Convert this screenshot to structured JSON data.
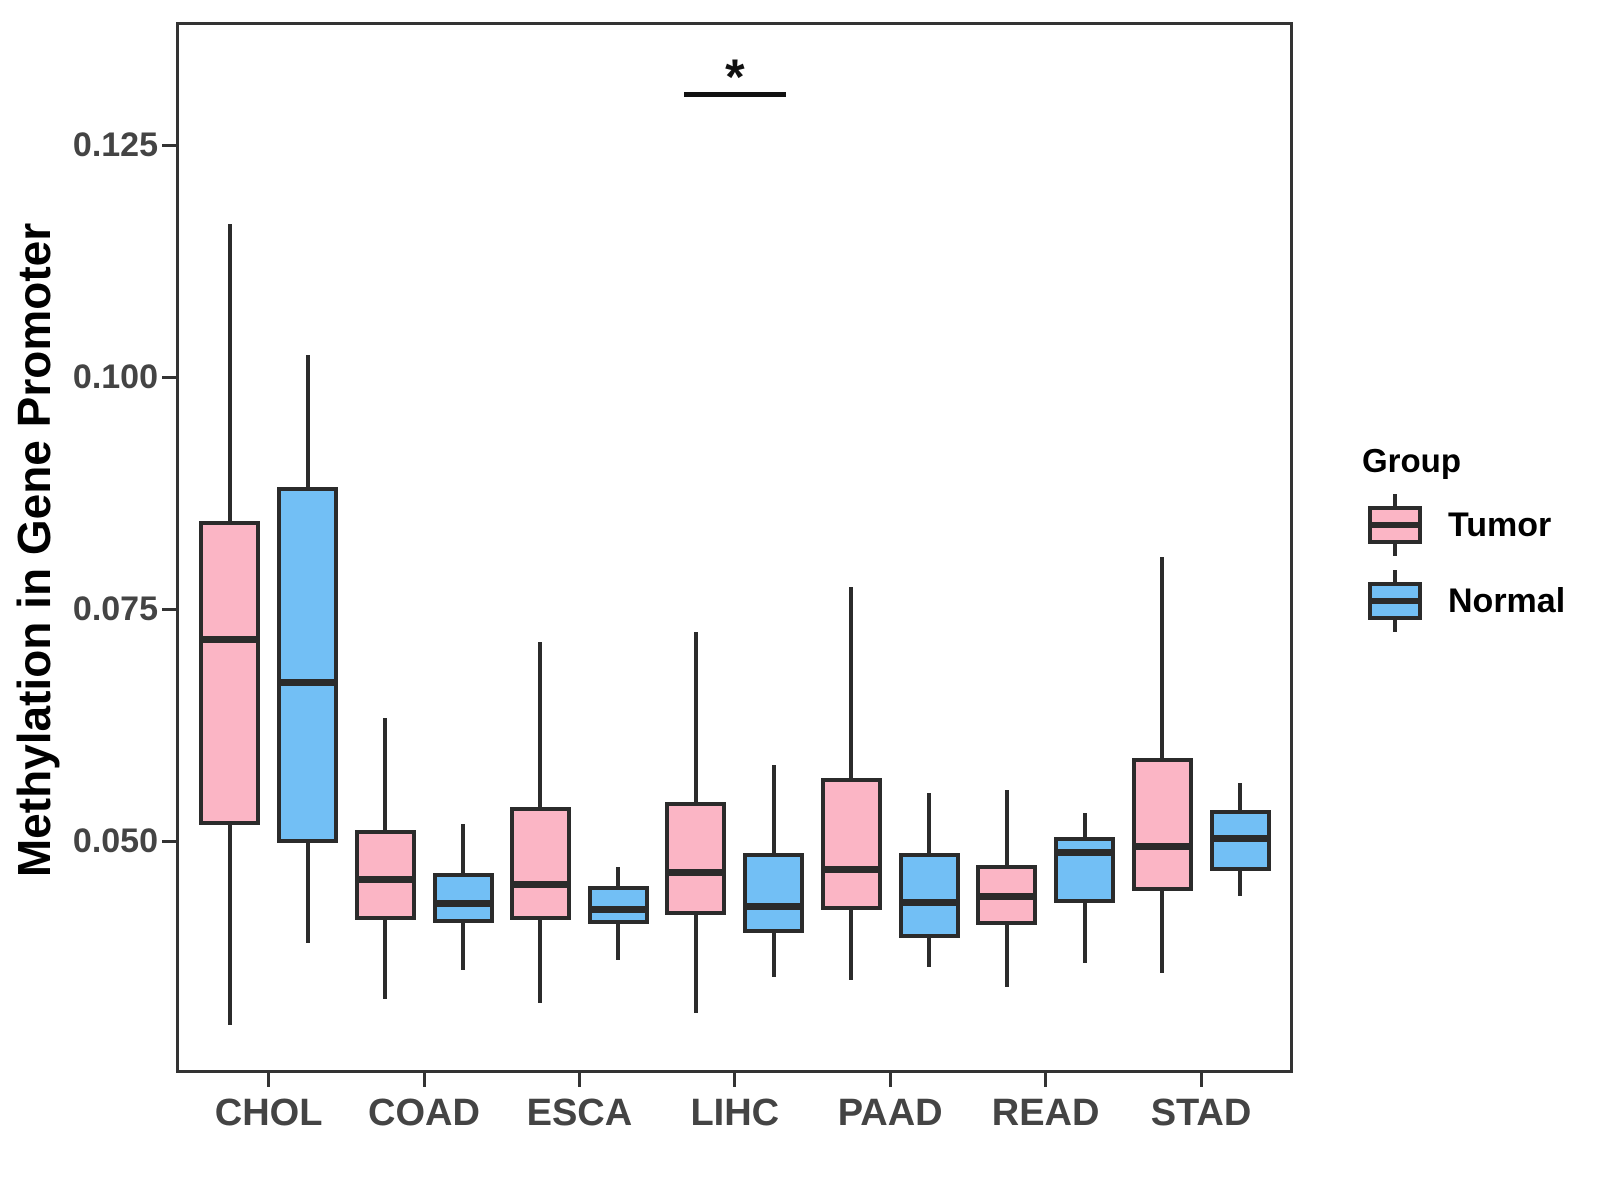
{
  "figure": {
    "y_axis_title": "Methylation in Gene Promoter"
  },
  "legend": {
    "title": "Group",
    "items": [
      {
        "label": "Tumor",
        "color": "#FBB5C5"
      },
      {
        "label": "Normal",
        "color": "#72BFF5"
      }
    ]
  },
  "chart_data": {
    "type": "boxplot",
    "title": "",
    "xlabel": "",
    "ylabel": "Methylation in Gene Promoter",
    "categories": [
      "CHOL",
      "COAD",
      "ESCA",
      "LIHC",
      "PAAD",
      "READ",
      "STAD"
    ],
    "groups": [
      "Tumor",
      "Normal"
    ],
    "y_ticks": [
      0.05,
      0.075,
      0.1,
      0.125
    ],
    "y_tick_labels": [
      "0.050",
      "0.075",
      "0.100",
      "0.125"
    ],
    "ylim": [
      0.025,
      0.138
    ],
    "grid": false,
    "legend_position": "right",
    "stroke_color": "#2B2B2B",
    "series": [
      {
        "name": "Tumor",
        "fill": "#FBB5C5",
        "boxes": [
          {
            "category": "CHOL",
            "whisker_low": 0.0302,
            "q1": 0.0517,
            "median": 0.0717,
            "q3": 0.0845,
            "whisker_high": 0.1165
          },
          {
            "category": "COAD",
            "whisker_low": 0.033,
            "q1": 0.0415,
            "median": 0.0458,
            "q3": 0.0512,
            "whisker_high": 0.0633
          },
          {
            "category": "ESCA",
            "whisker_low": 0.0325,
            "q1": 0.0415,
            "median": 0.0453,
            "q3": 0.0537,
            "whisker_high": 0.0714
          },
          {
            "category": "LIHC",
            "whisker_low": 0.0315,
            "q1": 0.042,
            "median": 0.0466,
            "q3": 0.0542,
            "whisker_high": 0.0725
          },
          {
            "category": "PAAD",
            "whisker_low": 0.035,
            "q1": 0.0426,
            "median": 0.0469,
            "q3": 0.0568,
            "whisker_high": 0.0774
          },
          {
            "category": "READ",
            "whisker_low": 0.0343,
            "q1": 0.041,
            "median": 0.044,
            "q3": 0.0474,
            "whisker_high": 0.0555
          },
          {
            "category": "STAD",
            "whisker_low": 0.0358,
            "q1": 0.0446,
            "median": 0.0494,
            "q3": 0.0589,
            "whisker_high": 0.0806
          }
        ]
      },
      {
        "name": "Normal",
        "fill": "#72BFF5",
        "boxes": [
          {
            "category": "CHOL",
            "whisker_low": 0.039,
            "q1": 0.0498,
            "median": 0.0671,
            "q3": 0.0881,
            "whisker_high": 0.1024
          },
          {
            "category": "COAD",
            "whisker_low": 0.0361,
            "q1": 0.0412,
            "median": 0.0433,
            "q3": 0.0466,
            "whisker_high": 0.0518
          },
          {
            "category": "ESCA",
            "whisker_low": 0.0372,
            "q1": 0.0411,
            "median": 0.0426,
            "q3": 0.0451,
            "whisker_high": 0.0472
          },
          {
            "category": "LIHC",
            "whisker_low": 0.0353,
            "q1": 0.0401,
            "median": 0.0429,
            "q3": 0.0487,
            "whisker_high": 0.0582
          },
          {
            "category": "PAAD",
            "whisker_low": 0.0364,
            "q1": 0.0396,
            "median": 0.0434,
            "q3": 0.0487,
            "whisker_high": 0.0552
          },
          {
            "category": "READ",
            "whisker_low": 0.0368,
            "q1": 0.0433,
            "median": 0.0488,
            "q3": 0.0504,
            "whisker_high": 0.053
          },
          {
            "category": "STAD",
            "whisker_low": 0.0441,
            "q1": 0.0468,
            "median": 0.0503,
            "q3": 0.0533,
            "whisker_high": 0.0563
          }
        ]
      }
    ],
    "annotations": [
      {
        "type": "significance",
        "category": "LIHC",
        "label": "*",
        "bar_y": 0.1307
      }
    ]
  }
}
